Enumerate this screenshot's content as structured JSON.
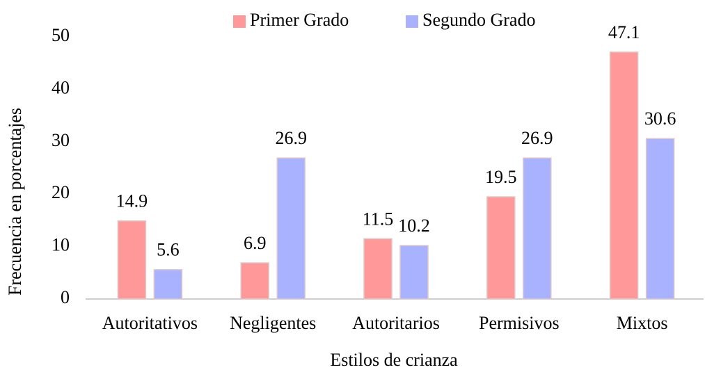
{
  "chart_data": {
    "type": "bar",
    "x_label": "Estilos de crianza",
    "y_label": "Frecuencia en porcentajes",
    "categories": [
      "Autoritativos",
      "Negligentes",
      "Autoritarios",
      "Permisivos",
      "Mixtos"
    ],
    "series": [
      {
        "name": "Primer Grado",
        "color": "#ff9999",
        "values": [
          14.9,
          6.9,
          11.5,
          19.5,
          47.1
        ]
      },
      {
        "name": "Segundo Grado",
        "color": "#a9b2ff",
        "values": [
          5.6,
          26.9,
          10.2,
          26.9,
          30.6
        ]
      }
    ],
    "ylim": [
      0,
      50
    ],
    "yticks": [
      0,
      10,
      20,
      30,
      40,
      50
    ],
    "grid": false,
    "legend": "top"
  }
}
